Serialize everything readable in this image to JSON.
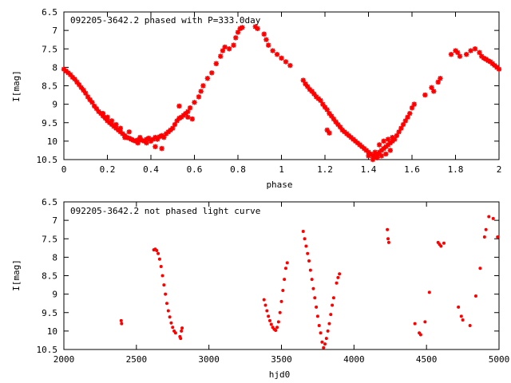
{
  "colors": {
    "point": "#ff0000",
    "axis": "#000000",
    "background": "#ffffff"
  },
  "chart_data": [
    {
      "type": "scatter",
      "title": "092205-3642.2 phased with P=333.0day",
      "xlabel": "phase",
      "ylabel": "I[mag]",
      "xlim": [
        0,
        2
      ],
      "ylim": [
        10.5,
        6.5
      ],
      "y_inverted": true,
      "xticks": [
        "0",
        "0.2",
        "0.4",
        "0.6",
        "0.8",
        "1",
        "1.2",
        "1.4",
        "1.6",
        "1.8",
        "2"
      ],
      "yticks": [
        "6.5",
        "7",
        "7.5",
        "8",
        "8.5",
        "9",
        "9.5",
        "10",
        "10.5"
      ],
      "grid": false,
      "marker": "plus-bold",
      "points": [
        [
          0.0,
          8.05
        ],
        [
          0.01,
          8.1
        ],
        [
          0.02,
          8.15
        ],
        [
          0.03,
          8.2
        ],
        [
          0.04,
          8.27
        ],
        [
          0.05,
          8.32
        ],
        [
          0.06,
          8.4
        ],
        [
          0.07,
          8.47
        ],
        [
          0.08,
          8.55
        ],
        [
          0.09,
          8.62
        ],
        [
          0.1,
          8.7
        ],
        [
          0.11,
          8.8
        ],
        [
          0.12,
          8.88
        ],
        [
          0.13,
          8.95
        ],
        [
          0.14,
          9.05
        ],
        [
          0.15,
          9.12
        ],
        [
          0.16,
          9.2
        ],
        [
          0.17,
          9.25
        ],
        [
          0.18,
          9.32
        ],
        [
          0.19,
          9.38
        ],
        [
          0.2,
          9.45
        ],
        [
          0.21,
          9.5
        ],
        [
          0.22,
          9.55
        ],
        [
          0.23,
          9.6
        ],
        [
          0.24,
          9.65
        ],
        [
          0.25,
          9.7
        ],
        [
          0.26,
          9.75
        ],
        [
          0.27,
          9.8
        ],
        [
          0.28,
          9.85
        ],
        [
          0.29,
          9.9
        ],
        [
          0.3,
          9.92
        ],
        [
          0.31,
          9.95
        ],
        [
          0.32,
          9.98
        ],
        [
          0.33,
          10.0
        ],
        [
          0.34,
          9.97
        ],
        [
          0.35,
          9.95
        ],
        [
          0.36,
          9.98
        ],
        [
          0.37,
          10.0
        ],
        [
          0.38,
          9.95
        ],
        [
          0.39,
          9.92
        ],
        [
          0.4,
          10.0
        ],
        [
          0.41,
          9.95
        ],
        [
          0.42,
          9.9
        ],
        [
          0.43,
          9.95
        ],
        [
          0.44,
          9.88
        ],
        [
          0.45,
          9.85
        ],
        [
          0.46,
          9.9
        ],
        [
          0.47,
          9.8
        ],
        [
          0.48,
          9.75
        ],
        [
          0.49,
          9.7
        ],
        [
          0.5,
          9.65
        ],
        [
          0.51,
          9.55
        ],
        [
          0.52,
          9.45
        ],
        [
          0.53,
          9.38
        ],
        [
          0.54,
          9.35
        ],
        [
          0.55,
          9.3
        ],
        [
          0.56,
          9.25
        ],
        [
          0.57,
          9.2
        ],
        [
          0.58,
          9.1
        ],
        [
          0.6,
          8.95
        ],
        [
          0.62,
          8.8
        ],
        [
          0.63,
          8.65
        ],
        [
          0.64,
          8.5
        ],
        [
          0.66,
          8.3
        ],
        [
          0.68,
          8.15
        ],
        [
          0.7,
          7.9
        ],
        [
          0.72,
          7.7
        ],
        [
          0.73,
          7.55
        ],
        [
          0.74,
          7.45
        ],
        [
          0.76,
          7.5
        ],
        [
          0.78,
          7.4
        ],
        [
          0.79,
          7.2
        ],
        [
          0.8,
          7.05
        ],
        [
          0.81,
          6.95
        ],
        [
          0.82,
          6.92
        ],
        [
          0.88,
          6.9
        ],
        [
          0.89,
          6.95
        ],
        [
          0.42,
          10.15
        ],
        [
          0.45,
          10.2
        ],
        [
          0.3,
          9.75
        ],
        [
          0.35,
          9.9
        ],
        [
          0.38,
          10.05
        ],
        [
          0.34,
          10.05
        ],
        [
          0.28,
          9.9
        ],
        [
          0.26,
          9.65
        ],
        [
          0.24,
          9.55
        ],
        [
          0.22,
          9.45
        ],
        [
          0.2,
          9.35
        ],
        [
          0.18,
          9.25
        ],
        [
          0.53,
          9.05
        ],
        [
          0.57,
          9.35
        ],
        [
          0.59,
          9.4
        ],
        [
          0.92,
          7.1
        ],
        [
          0.93,
          7.25
        ],
        [
          0.94,
          7.4
        ],
        [
          0.96,
          7.55
        ],
        [
          0.98,
          7.65
        ],
        [
          1.0,
          7.75
        ],
        [
          1.02,
          7.85
        ],
        [
          1.04,
          7.95
        ],
        [
          1.1,
          8.35
        ],
        [
          1.11,
          8.45
        ],
        [
          1.12,
          8.52
        ],
        [
          1.13,
          8.6
        ],
        [
          1.14,
          8.65
        ],
        [
          1.15,
          8.72
        ],
        [
          1.16,
          8.8
        ],
        [
          1.17,
          8.85
        ],
        [
          1.18,
          8.9
        ],
        [
          1.19,
          9.0
        ],
        [
          1.2,
          9.08
        ],
        [
          1.21,
          9.15
        ],
        [
          1.22,
          9.25
        ],
        [
          1.23,
          9.32
        ],
        [
          1.24,
          9.4
        ],
        [
          1.25,
          9.48
        ],
        [
          1.26,
          9.55
        ],
        [
          1.27,
          9.62
        ],
        [
          1.28,
          9.7
        ],
        [
          1.29,
          9.75
        ],
        [
          1.3,
          9.8
        ],
        [
          1.31,
          9.85
        ],
        [
          1.32,
          9.9
        ],
        [
          1.33,
          9.95
        ],
        [
          1.34,
          10.0
        ],
        [
          1.35,
          10.05
        ],
        [
          1.36,
          10.1
        ],
        [
          1.37,
          10.15
        ],
        [
          1.38,
          10.2
        ],
        [
          1.39,
          10.25
        ],
        [
          1.4,
          10.3
        ],
        [
          1.41,
          10.35
        ],
        [
          1.42,
          10.4
        ],
        [
          1.43,
          10.42
        ],
        [
          1.44,
          10.38
        ],
        [
          1.45,
          10.3
        ],
        [
          1.46,
          10.25
        ],
        [
          1.47,
          10.2
        ],
        [
          1.48,
          10.15
        ],
        [
          1.49,
          10.1
        ],
        [
          1.5,
          10.05
        ],
        [
          1.51,
          10.0
        ],
        [
          1.52,
          9.95
        ],
        [
          1.53,
          9.85
        ],
        [
          1.54,
          9.75
        ],
        [
          1.55,
          9.65
        ],
        [
          1.56,
          9.55
        ],
        [
          1.57,
          9.45
        ],
        [
          1.58,
          9.35
        ],
        [
          1.59,
          9.25
        ],
        [
          1.6,
          9.1
        ],
        [
          1.61,
          9.0
        ],
        [
          1.22,
          9.78
        ],
        [
          1.21,
          9.7
        ],
        [
          1.42,
          10.5
        ],
        [
          1.44,
          10.45
        ],
        [
          1.46,
          10.4
        ],
        [
          1.48,
          10.35
        ],
        [
          1.5,
          10.25
        ],
        [
          1.45,
          10.1
        ],
        [
          1.47,
          10.0
        ],
        [
          1.49,
          9.95
        ],
        [
          1.51,
          9.9
        ],
        [
          1.4,
          10.4
        ],
        [
          1.43,
          10.3
        ],
        [
          1.66,
          8.75
        ],
        [
          1.69,
          8.55
        ],
        [
          1.72,
          8.4
        ],
        [
          1.73,
          8.3
        ],
        [
          1.7,
          8.65
        ],
        [
          1.78,
          7.65
        ],
        [
          1.8,
          7.55
        ],
        [
          1.81,
          7.6
        ],
        [
          1.82,
          7.7
        ],
        [
          1.85,
          7.65
        ],
        [
          1.87,
          7.55
        ],
        [
          1.89,
          7.5
        ],
        [
          1.91,
          7.6
        ],
        [
          1.92,
          7.7
        ],
        [
          1.93,
          7.75
        ],
        [
          1.94,
          7.78
        ],
        [
          1.95,
          7.82
        ],
        [
          1.96,
          7.85
        ],
        [
          1.97,
          7.9
        ],
        [
          1.98,
          7.95
        ],
        [
          1.99,
          8.0
        ],
        [
          2.0,
          8.05
        ]
      ]
    },
    {
      "type": "scatter",
      "title": "092205-3642.2 not phased light curve",
      "xlabel": "hjd0",
      "ylabel": "I[mag]",
      "xlim": [
        2000,
        5000
      ],
      "ylim": [
        10.5,
        6.5
      ],
      "y_inverted": true,
      "xticks": [
        "2000",
        "2500",
        "3000",
        "3500",
        "4000",
        "4500",
        "5000"
      ],
      "yticks": [
        "6.5",
        "7",
        "7.5",
        "8",
        "8.5",
        "9",
        "9.5",
        "10",
        "10.5"
      ],
      "grid": false,
      "marker": "dot",
      "points": [
        [
          2395,
          9.72
        ],
        [
          2398,
          9.8
        ],
        [
          2620,
          7.8
        ],
        [
          2630,
          7.78
        ],
        [
          2640,
          7.82
        ],
        [
          2650,
          7.9
        ],
        [
          2660,
          8.05
        ],
        [
          2670,
          8.25
        ],
        [
          2680,
          8.5
        ],
        [
          2690,
          8.75
        ],
        [
          2700,
          9.0
        ],
        [
          2710,
          9.25
        ],
        [
          2720,
          9.45
        ],
        [
          2730,
          9.62
        ],
        [
          2740,
          9.78
        ],
        [
          2750,
          9.9
        ],
        [
          2760,
          10.0
        ],
        [
          2770,
          10.05
        ],
        [
          2800,
          10.15
        ],
        [
          2805,
          10.2
        ],
        [
          2810,
          10.0
        ],
        [
          2815,
          9.92
        ],
        [
          3380,
          9.15
        ],
        [
          3390,
          9.3
        ],
        [
          3400,
          9.45
        ],
        [
          3410,
          9.6
        ],
        [
          3420,
          9.72
        ],
        [
          3430,
          9.82
        ],
        [
          3440,
          9.9
        ],
        [
          3450,
          9.95
        ],
        [
          3460,
          9.98
        ],
        [
          3470,
          9.9
        ],
        [
          3480,
          9.75
        ],
        [
          3490,
          9.5
        ],
        [
          3500,
          9.2
        ],
        [
          3510,
          8.9
        ],
        [
          3520,
          8.6
        ],
        [
          3530,
          8.3
        ],
        [
          3540,
          8.15
        ],
        [
          3650,
          7.3
        ],
        [
          3660,
          7.5
        ],
        [
          3670,
          7.7
        ],
        [
          3680,
          7.9
        ],
        [
          3690,
          8.1
        ],
        [
          3700,
          8.35
        ],
        [
          3710,
          8.6
        ],
        [
          3720,
          8.85
        ],
        [
          3730,
          9.1
        ],
        [
          3740,
          9.35
        ],
        [
          3750,
          9.6
        ],
        [
          3760,
          9.85
        ],
        [
          3770,
          10.05
        ],
        [
          3780,
          10.3
        ],
        [
          3790,
          10.45
        ],
        [
          3800,
          10.35
        ],
        [
          3810,
          10.2
        ],
        [
          3820,
          10.0
        ],
        [
          3830,
          9.8
        ],
        [
          3840,
          9.55
        ],
        [
          3850,
          9.3
        ],
        [
          3860,
          9.1
        ],
        [
          3880,
          8.7
        ],
        [
          3890,
          8.55
        ],
        [
          3900,
          8.45
        ],
        [
          4230,
          7.25
        ],
        [
          4235,
          7.5
        ],
        [
          4240,
          7.6
        ],
        [
          4420,
          9.8
        ],
        [
          4450,
          10.05
        ],
        [
          4460,
          10.1
        ],
        [
          4490,
          9.75
        ],
        [
          4520,
          8.95
        ],
        [
          4580,
          7.6
        ],
        [
          4590,
          7.65
        ],
        [
          4600,
          7.7
        ],
        [
          4620,
          7.62
        ],
        [
          4720,
          9.35
        ],
        [
          4740,
          9.6
        ],
        [
          4750,
          9.7
        ],
        [
          4800,
          9.85
        ],
        [
          4840,
          9.05
        ],
        [
          4870,
          8.3
        ],
        [
          4900,
          7.45
        ],
        [
          4910,
          7.25
        ],
        [
          4930,
          6.9
        ],
        [
          4960,
          6.95
        ],
        [
          4990,
          7.45
        ]
      ]
    }
  ]
}
